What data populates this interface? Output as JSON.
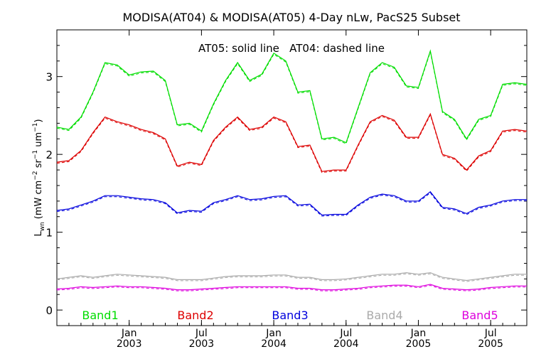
{
  "chart_data": {
    "type": "line",
    "title": "MODISA(AT04) & MODISA(AT05) 4-Day nLw, PacS25 Subset",
    "annotation": "AT05: solid line   AT04: dashed line",
    "ylabel_main": "L",
    "ylabel_sub": "wn",
    "ylabel_units": "(mW cm",
    "ylabel_exp1": "−2",
    "ylabel_mid1": " sr",
    "ylabel_exp2": "−1",
    "ylabel_mid2": " um",
    "ylabel_exp3": "−1",
    "ylabel_end": ")",
    "ylim": [
      -0.2,
      3.6
    ],
    "yticks": [
      0,
      1,
      2,
      3
    ],
    "xlim": [
      2002.5,
      2005.75
    ],
    "xticks": [
      {
        "x": 2003.0,
        "month": "Jan",
        "year": "2003"
      },
      {
        "x": 2003.5,
        "month": "Jul",
        "year": "2003"
      },
      {
        "x": 2004.0,
        "month": "Jan",
        "year": "2004"
      },
      {
        "x": 2004.5,
        "month": "Jul",
        "year": "2004"
      },
      {
        "x": 2005.0,
        "month": "Jan",
        "year": "2005"
      },
      {
        "x": 2005.5,
        "month": "Jul",
        "year": "2005"
      }
    ],
    "x": [
      2002.5,
      2002.583,
      2002.667,
      2002.75,
      2002.833,
      2002.917,
      2003.0,
      2003.083,
      2003.167,
      2003.25,
      2003.333,
      2003.417,
      2003.5,
      2003.583,
      2003.667,
      2003.75,
      2003.833,
      2003.917,
      2004.0,
      2004.083,
      2004.167,
      2004.25,
      2004.333,
      2004.417,
      2004.5,
      2004.583,
      2004.667,
      2004.75,
      2004.833,
      2004.917,
      2005.0,
      2005.083,
      2005.167,
      2005.25,
      2005.333,
      2005.417,
      2005.5,
      2005.583,
      2005.667,
      2005.75
    ],
    "series": [
      {
        "name": "Band1",
        "color": "#00dd00",
        "values": [
          2.35,
          2.32,
          2.48,
          2.8,
          3.18,
          3.15,
          3.02,
          3.06,
          3.07,
          2.95,
          2.38,
          2.4,
          2.3,
          2.65,
          2.95,
          3.18,
          2.95,
          3.03,
          3.3,
          3.2,
          2.8,
          2.82,
          2.2,
          2.22,
          2.15,
          2.6,
          3.05,
          3.18,
          3.12,
          2.88,
          2.86,
          3.33,
          2.55,
          2.45,
          2.2,
          2.45,
          2.5,
          2.9,
          2.92,
          2.9
        ]
      },
      {
        "name": "Band2",
        "color": "#dd0000",
        "values": [
          1.9,
          1.92,
          2.05,
          2.28,
          2.48,
          2.42,
          2.38,
          2.32,
          2.28,
          2.2,
          1.85,
          1.9,
          1.87,
          2.18,
          2.35,
          2.48,
          2.32,
          2.35,
          2.48,
          2.42,
          2.1,
          2.12,
          1.78,
          1.8,
          1.8,
          2.12,
          2.42,
          2.5,
          2.44,
          2.22,
          2.22,
          2.52,
          2.0,
          1.95,
          1.8,
          1.98,
          2.05,
          2.3,
          2.32,
          2.3
        ]
      },
      {
        "name": "Band3",
        "color": "#0000dd",
        "values": [
          1.28,
          1.3,
          1.35,
          1.4,
          1.47,
          1.47,
          1.45,
          1.43,
          1.42,
          1.38,
          1.25,
          1.28,
          1.27,
          1.38,
          1.42,
          1.47,
          1.42,
          1.43,
          1.46,
          1.47,
          1.35,
          1.36,
          1.22,
          1.23,
          1.23,
          1.35,
          1.45,
          1.49,
          1.47,
          1.4,
          1.4,
          1.52,
          1.32,
          1.3,
          1.24,
          1.32,
          1.35,
          1.4,
          1.42,
          1.42
        ]
      },
      {
        "name": "Band4",
        "color": "#aaaaaa",
        "values": [
          0.4,
          0.42,
          0.44,
          0.42,
          0.44,
          0.46,
          0.45,
          0.44,
          0.43,
          0.42,
          0.39,
          0.39,
          0.39,
          0.41,
          0.43,
          0.44,
          0.44,
          0.44,
          0.45,
          0.45,
          0.42,
          0.42,
          0.39,
          0.39,
          0.4,
          0.42,
          0.44,
          0.46,
          0.46,
          0.48,
          0.46,
          0.48,
          0.42,
          0.4,
          0.38,
          0.4,
          0.42,
          0.44,
          0.46,
          0.46
        ]
      },
      {
        "name": "Band5",
        "color": "#dd00dd",
        "values": [
          0.27,
          0.28,
          0.3,
          0.29,
          0.3,
          0.31,
          0.3,
          0.3,
          0.29,
          0.28,
          0.26,
          0.26,
          0.27,
          0.28,
          0.29,
          0.3,
          0.3,
          0.3,
          0.3,
          0.3,
          0.28,
          0.28,
          0.26,
          0.26,
          0.27,
          0.28,
          0.3,
          0.31,
          0.32,
          0.32,
          0.3,
          0.33,
          0.28,
          0.27,
          0.26,
          0.27,
          0.29,
          0.3,
          0.31,
          0.31
        ]
      }
    ]
  }
}
